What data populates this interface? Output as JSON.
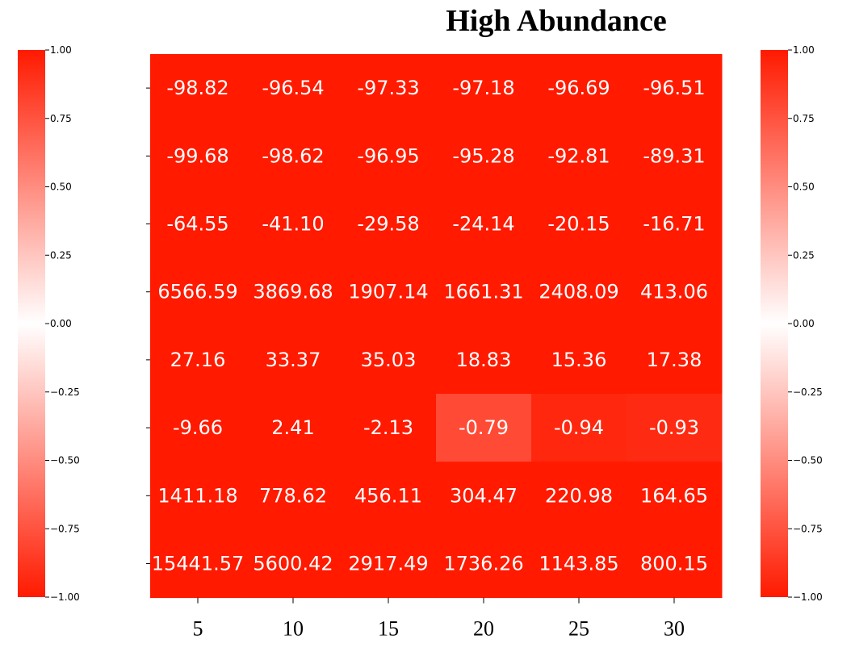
{
  "chart_data": {
    "type": "heatmap",
    "title": "High Abundance",
    "x": [
      5,
      10,
      15,
      20,
      25,
      30
    ],
    "x_tick_labels": [
      "5",
      "10",
      "15",
      "20",
      "25",
      "30"
    ],
    "rows": [
      {
        "labels": [
          "-98.82",
          "-96.54",
          "-97.33",
          "-97.18",
          "-96.69",
          "-96.51"
        ],
        "colors": [
          -1.0,
          -1.0,
          -1.0,
          -1.0,
          -1.0,
          -1.0
        ]
      },
      {
        "labels": [
          "-99.68",
          "-98.62",
          "-96.95",
          "-95.28",
          "-92.81",
          "-89.31"
        ],
        "colors": [
          -1.0,
          -1.0,
          -1.0,
          -1.0,
          -1.0,
          -1.0
        ]
      },
      {
        "labels": [
          "-64.55",
          "-41.10",
          "-29.58",
          "-24.14",
          "-20.15",
          "-16.71"
        ],
        "colors": [
          -1.0,
          -1.0,
          -1.0,
          -1.0,
          -1.0,
          -1.0
        ]
      },
      {
        "labels": [
          "6566.59",
          "3869.68",
          "1907.14",
          "1661.31",
          "2408.09",
          "413.06"
        ],
        "colors": [
          -1.0,
          -1.0,
          -1.0,
          -1.0,
          -1.0,
          -1.0
        ]
      },
      {
        "labels": [
          "27.16",
          "33.37",
          "35.03",
          "18.83",
          "15.36",
          "17.38"
        ],
        "colors": [
          -1.0,
          -1.0,
          -1.0,
          -1.0,
          -1.0,
          -1.0
        ]
      },
      {
        "labels": [
          "-9.66",
          "2.41",
          "-2.13",
          "-0.79",
          "-0.94",
          "-0.93"
        ],
        "colors": [
          -1.0,
          -1.0,
          -1.0,
          -0.79,
          -0.94,
          -0.93
        ]
      },
      {
        "labels": [
          "1411.18",
          "778.62",
          "456.11",
          "304.47",
          "220.98",
          "164.65"
        ],
        "colors": [
          -1.0,
          -1.0,
          -1.0,
          -1.0,
          -1.0,
          -1.0
        ]
      },
      {
        "labels": [
          "15441.57",
          "5600.42",
          "2917.49",
          "1736.26",
          "1143.85",
          "800.15"
        ],
        "colors": [
          -1.0,
          -1.0,
          -1.0,
          -1.0,
          -1.0,
          -1.0
        ]
      }
    ],
    "color_scale": {
      "min": -1.0,
      "max": 1.0,
      "low_color": "#ff1a00",
      "mid_color": "#ffffff",
      "high_color": "#ff1a00"
    },
    "colorbars": [
      {
        "position": "left",
        "ticks": [
          "1.00",
          "0.75",
          "0.50",
          "0.25",
          "0.00",
          "−0.25",
          "−0.50",
          "−0.75",
          "−1.00"
        ]
      },
      {
        "position": "right",
        "ticks": [
          "1.00",
          "0.75",
          "0.50",
          "0.25",
          "0.00",
          "−0.25",
          "−0.50",
          "−0.75",
          "−1.00"
        ]
      }
    ],
    "grid": false
  }
}
